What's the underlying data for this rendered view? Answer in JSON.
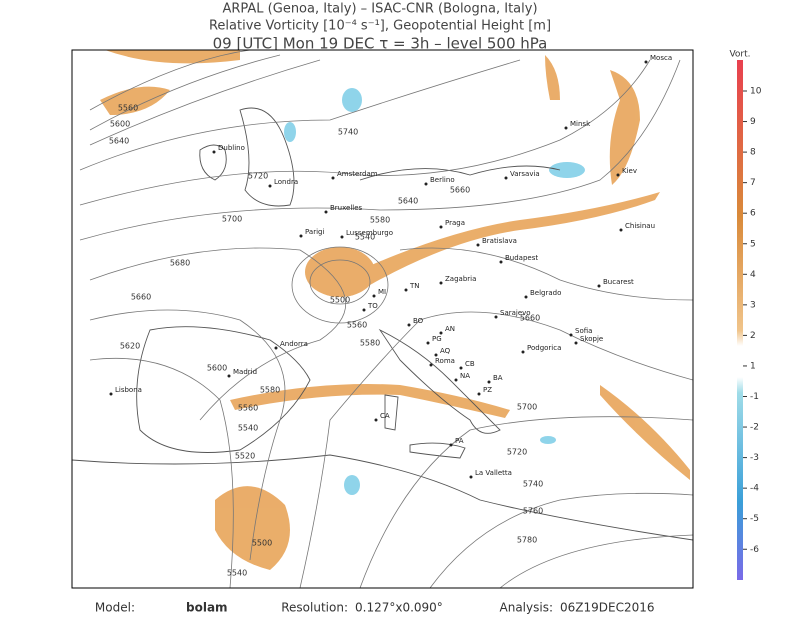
{
  "header": {
    "line1": "ARPAL (Genoa, Italy)  –  ISAC-CNR (Bologna, Italy)",
    "line2": "Relative Vorticity [10⁻⁴ s⁻¹], Geopotential Height [m]",
    "line3": "09 [UTC] Mon 19 DEC   τ = 3h   –   level 500 hPa"
  },
  "colorbar": {
    "title": "Vort.",
    "ticks": [
      10,
      9,
      8,
      7,
      6,
      5,
      4,
      3,
      2,
      1,
      -1,
      -2,
      -3,
      -4,
      -5,
      -6
    ]
  },
  "map": {
    "cities": [
      "Mosca",
      "Dublino",
      "Londra",
      "Amsterdam",
      "Berlino",
      "Varsavia",
      "Minsk",
      "Kiev",
      "Bruxelles",
      "Praga",
      "Parigi",
      "Lussemburgo",
      "Bratislava",
      "Budapest",
      "Chisinau",
      "Zagabria",
      "Belgrado",
      "Bucarest",
      "Sarajevo",
      "Sofia",
      "Andorra",
      "Madrid",
      "Lisbona",
      "Roma",
      "Podgorica",
      "Skopje",
      "La Valletta",
      "TO",
      "MI",
      "BO",
      "AN",
      "PG",
      "AQ",
      "NA",
      "BA",
      "PZ",
      "CB",
      "CA",
      "PA",
      "TN"
    ],
    "contour_labels": [
      5560,
      5600,
      5640,
      5740,
      5720,
      5700,
      5680,
      5660,
      5620,
      5600,
      5580,
      5560,
      5540,
      5520,
      5500,
      5540,
      5660,
      5640,
      5580,
      5540,
      5500,
      5560,
      5580,
      5660,
      5700,
      5720,
      5740,
      5760,
      5780
    ]
  },
  "footer": {
    "model_label": "Model:",
    "model": "bolam",
    "resolution_label": "Resolution:",
    "resolution": "0.127°x0.090°",
    "analysis_label": "Analysis:",
    "analysis": "06Z19DEC2016"
  }
}
